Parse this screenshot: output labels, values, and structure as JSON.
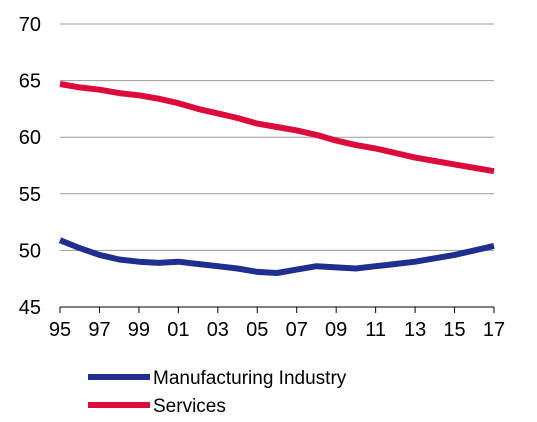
{
  "chart_data": {
    "type": "line",
    "x": [
      "95",
      "96",
      "97",
      "98",
      "99",
      "00",
      "01",
      "02",
      "03",
      "04",
      "05",
      "06",
      "07",
      "08",
      "09",
      "10",
      "11",
      "12",
      "13",
      "14",
      "15",
      "16",
      "17"
    ],
    "x_tick_labels": [
      "95",
      "97",
      "99",
      "01",
      "03",
      "05",
      "07",
      "09",
      "11",
      "13",
      "15",
      "17"
    ],
    "y_ticks": [
      "45",
      "50",
      "55",
      "60",
      "65",
      "70"
    ],
    "ylim": [
      45,
      70
    ],
    "grid": true,
    "legend": "bottom",
    "series": [
      {
        "name": "Manufacturing Industry",
        "color": "#1f2f8f",
        "values": [
          50.9,
          50.2,
          49.6,
          49.2,
          49.0,
          48.9,
          49.0,
          48.8,
          48.6,
          48.4,
          48.1,
          48.0,
          48.3,
          48.6,
          48.5,
          48.4,
          48.6,
          48.8,
          49.0,
          49.3,
          49.6,
          50.0,
          50.4
        ]
      },
      {
        "name": "Services",
        "color": "#dd0a3c",
        "values": [
          64.7,
          64.4,
          64.2,
          63.9,
          63.7,
          63.4,
          63.0,
          62.5,
          62.1,
          61.7,
          61.2,
          60.9,
          60.6,
          60.2,
          59.7,
          59.3,
          59.0,
          58.6,
          58.2,
          57.9,
          57.6,
          57.3,
          57.0
        ]
      }
    ]
  }
}
